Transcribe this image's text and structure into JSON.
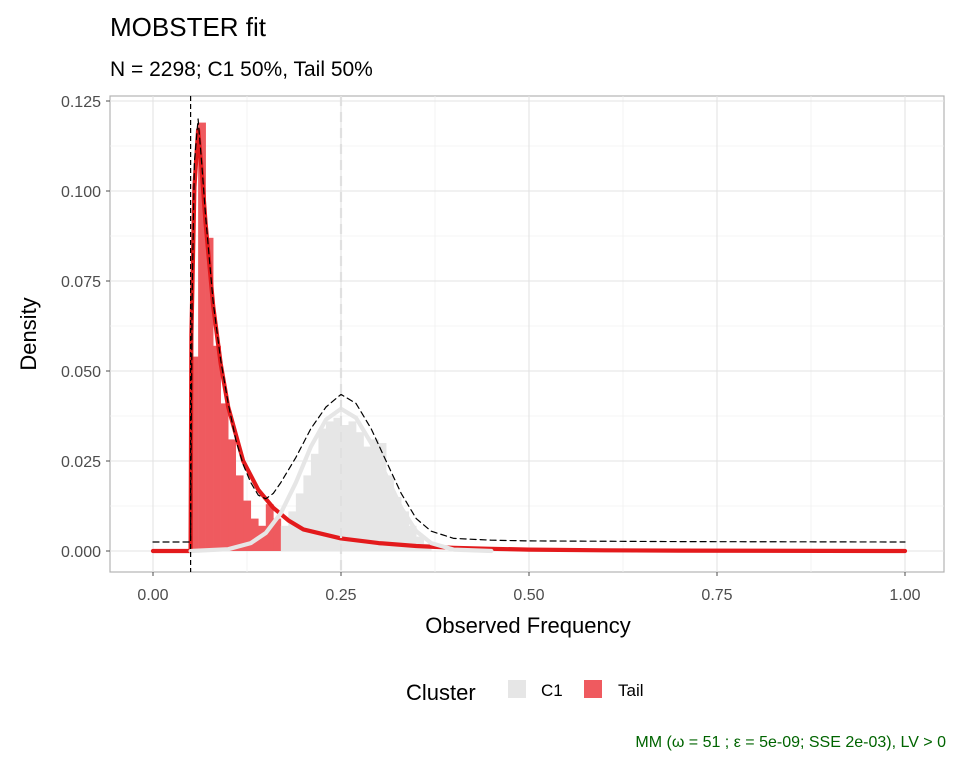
{
  "chart_data": {
    "type": "histogram",
    "title": "MOBSTER fit",
    "subtitle": "N = 2298; C1 50%, Tail 50%",
    "xlabel": "Observed Frequency",
    "ylabel": "Density",
    "xlim": [
      0.0,
      1.0
    ],
    "ylim": [
      0.0,
      0.125
    ],
    "x_ticks": [
      "0.00",
      "0.25",
      "0.50",
      "0.75",
      "1.00"
    ],
    "y_ticks": [
      "0.000",
      "0.025",
      "0.050",
      "0.075",
      "0.100",
      "0.125"
    ],
    "grid": true,
    "legend": {
      "title": "Cluster",
      "position": "bottom",
      "entries": [
        {
          "label": "C1",
          "color": "#e6e6e6"
        },
        {
          "label": "Tail",
          "color": "#ef5a5f"
        }
      ]
    },
    "caption": "MM (ω = 51 ; ε = 5e-09; SSE 2e-03), LV > 0",
    "vertical_lines": [
      {
        "x": 0.05,
        "style": "dashed",
        "color": "#000000"
      },
      {
        "x": 0.25,
        "style": "dashed",
        "color": "#e0e0e0"
      }
    ],
    "series": [
      {
        "name": "Tail",
        "kind": "bars",
        "color": "#ef5a5f",
        "bin_width": 0.01,
        "bins": [
          {
            "x": 0.05,
            "y": 0.054
          },
          {
            "x": 0.06,
            "y": 0.119
          },
          {
            "x": 0.07,
            "y": 0.087
          },
          {
            "x": 0.08,
            "y": 0.057
          },
          {
            "x": 0.09,
            "y": 0.041
          },
          {
            "x": 0.1,
            "y": 0.031
          },
          {
            "x": 0.11,
            "y": 0.021
          },
          {
            "x": 0.12,
            "y": 0.014
          },
          {
            "x": 0.13,
            "y": 0.009
          },
          {
            "x": 0.14,
            "y": 0.007
          },
          {
            "x": 0.15,
            "y": 0.013
          },
          {
            "x": 0.16,
            "y": 0.009
          }
        ]
      },
      {
        "name": "C1",
        "kind": "bars",
        "color": "#e6e6e6",
        "bin_width": 0.01,
        "bins": [
          {
            "x": 0.17,
            "y": 0.007
          },
          {
            "x": 0.18,
            "y": 0.011
          },
          {
            "x": 0.19,
            "y": 0.016
          },
          {
            "x": 0.2,
            "y": 0.021
          },
          {
            "x": 0.21,
            "y": 0.027
          },
          {
            "x": 0.22,
            "y": 0.034
          },
          {
            "x": 0.23,
            "y": 0.036
          },
          {
            "x": 0.24,
            "y": 0.037
          },
          {
            "x": 0.25,
            "y": 0.035
          },
          {
            "x": 0.26,
            "y": 0.036
          },
          {
            "x": 0.27,
            "y": 0.033
          },
          {
            "x": 0.28,
            "y": 0.029
          },
          {
            "x": 0.29,
            "y": 0.031
          },
          {
            "x": 0.3,
            "y": 0.03
          },
          {
            "x": 0.31,
            "y": 0.021
          },
          {
            "x": 0.32,
            "y": 0.015
          },
          {
            "x": 0.33,
            "y": 0.011
          },
          {
            "x": 0.34,
            "y": 0.007
          },
          {
            "x": 0.35,
            "y": 0.004
          },
          {
            "x": 0.36,
            "y": 0.002
          }
        ]
      },
      {
        "name": "Tail",
        "kind": "density",
        "color": "#e31a1c",
        "points": [
          [
            0.0,
            0.0
          ],
          [
            0.05,
            0.0
          ],
          [
            0.051,
            0.06
          ],
          [
            0.055,
            0.101
          ],
          [
            0.06,
            0.117
          ],
          [
            0.065,
            0.105
          ],
          [
            0.07,
            0.091
          ],
          [
            0.08,
            0.068
          ],
          [
            0.09,
            0.052
          ],
          [
            0.1,
            0.04
          ],
          [
            0.12,
            0.025
          ],
          [
            0.14,
            0.017
          ],
          [
            0.16,
            0.012
          ],
          [
            0.18,
            0.0085
          ],
          [
            0.2,
            0.006
          ],
          [
            0.25,
            0.0035
          ],
          [
            0.3,
            0.0022
          ],
          [
            0.35,
            0.0014
          ],
          [
            0.4,
            0.0009
          ],
          [
            0.45,
            0.0006
          ],
          [
            0.5,
            0.0004
          ],
          [
            0.6,
            0.0002
          ],
          [
            0.7,
            0.0001
          ],
          [
            1.0,
            0.0
          ]
        ]
      },
      {
        "name": "C1",
        "kind": "density",
        "color": "#e6e6e6",
        "points": [
          [
            0.05,
            0.0
          ],
          [
            0.1,
            0.0005
          ],
          [
            0.13,
            0.0022
          ],
          [
            0.15,
            0.005
          ],
          [
            0.17,
            0.0105
          ],
          [
            0.19,
            0.019
          ],
          [
            0.21,
            0.029
          ],
          [
            0.23,
            0.0365
          ],
          [
            0.25,
            0.0395
          ],
          [
            0.27,
            0.037
          ],
          [
            0.29,
            0.03
          ],
          [
            0.31,
            0.021
          ],
          [
            0.33,
            0.012
          ],
          [
            0.35,
            0.0055
          ],
          [
            0.37,
            0.0022
          ],
          [
            0.4,
            0.0004
          ],
          [
            0.45,
            0.0
          ]
        ]
      },
      {
        "name": "",
        "kind": "mixture-density",
        "style": "dashed",
        "color": "#000000",
        "points": [
          [
            0.0,
            0.0025
          ],
          [
            0.05,
            0.0025
          ],
          [
            0.052,
            0.07
          ],
          [
            0.055,
            0.108
          ],
          [
            0.06,
            0.12
          ],
          [
            0.065,
            0.107
          ],
          [
            0.07,
            0.093
          ],
          [
            0.08,
            0.069
          ],
          [
            0.09,
            0.053
          ],
          [
            0.1,
            0.041
          ],
          [
            0.11,
            0.031
          ],
          [
            0.12,
            0.024
          ],
          [
            0.13,
            0.019
          ],
          [
            0.14,
            0.0155
          ],
          [
            0.15,
            0.0145
          ],
          [
            0.16,
            0.016
          ],
          [
            0.17,
            0.019
          ],
          [
            0.19,
            0.026
          ],
          [
            0.21,
            0.034
          ],
          [
            0.23,
            0.04
          ],
          [
            0.25,
            0.0435
          ],
          [
            0.27,
            0.041
          ],
          [
            0.29,
            0.034
          ],
          [
            0.31,
            0.025
          ],
          [
            0.33,
            0.016
          ],
          [
            0.35,
            0.009
          ],
          [
            0.37,
            0.0055
          ],
          [
            0.4,
            0.0035
          ],
          [
            0.45,
            0.003
          ],
          [
            0.5,
            0.0028
          ],
          [
            0.7,
            0.0026
          ],
          [
            1.0,
            0.0025
          ]
        ]
      }
    ]
  }
}
